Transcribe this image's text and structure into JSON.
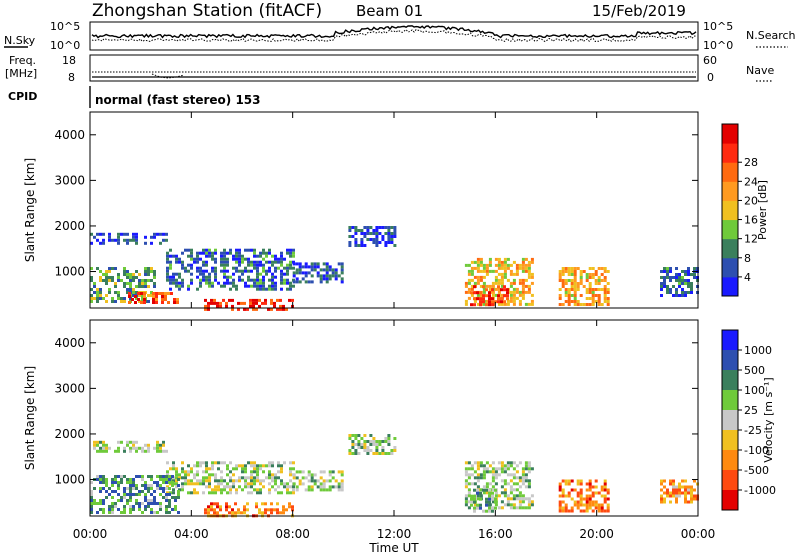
{
  "header": {
    "station": "Zhongshan Station (fitACF)",
    "beam": "Beam 01",
    "date": "15/Feb/2019"
  },
  "noise_panel": {
    "left_label": "N.Sky",
    "left_ticks": [
      "10^5",
      "10^0"
    ],
    "right_label": "N.Search",
    "right_ticks": [
      "10^5",
      "10^0"
    ]
  },
  "freq_panel": {
    "left_label_1": "Freq.",
    "left_label_2": "[MHz]",
    "left_ticks": [
      "18",
      "8"
    ],
    "right_label": "Nave",
    "right_ticks": [
      "60",
      "0"
    ]
  },
  "cpid": {
    "label": "CPID",
    "value": "normal (fast stereo) 153"
  },
  "colors": {
    "power_scale": [
      "#1a1aff",
      "#2d4fb0",
      "#3a7f5c",
      "#6fca3a",
      "#f0c020",
      "#ff9a20",
      "#ff6a10",
      "#ff2a10",
      "#e30000"
    ],
    "velocity_scale": [
      "#1a1aff",
      "#2d4fb0",
      "#3a7f5c",
      "#6fca3a",
      "#c8c8c8",
      "#f0c020",
      "#ff8a10",
      "#ff4a10",
      "#e30000"
    ]
  },
  "chart_data": [
    {
      "type": "heatmap",
      "name": "power",
      "ylabel": "Slant Range [km]",
      "y_ticks": [
        "1000",
        "2000",
        "3000",
        "4000"
      ],
      "ylim": [
        200,
        4500
      ],
      "x_ticks": [
        "00:00",
        "04:00",
        "08:00",
        "12:00",
        "16:00",
        "20:00",
        "00:00"
      ],
      "xlim_hours": [
        0,
        24
      ],
      "colorbar_label": "Power [dB]",
      "colorbar_ticks": [
        "4",
        "8",
        "12",
        "16",
        "20",
        "24",
        "28"
      ],
      "regions": [
        {
          "t0": 0.0,
          "t1": 3.0,
          "r0": 1650,
          "r1": 1850,
          "level": 0.15
        },
        {
          "t0": 3.0,
          "t1": 8.0,
          "r0": 600,
          "r1": 1500,
          "level": 0.2
        },
        {
          "t0": 0.0,
          "t1": 2.5,
          "r0": 350,
          "r1": 1100,
          "level": 0.35
        },
        {
          "t0": 1.5,
          "t1": 3.5,
          "r0": 300,
          "r1": 550,
          "level": 0.8
        },
        {
          "t0": 4.5,
          "t1": 8.0,
          "r0": 200,
          "r1": 400,
          "level": 0.85
        },
        {
          "t0": 8.0,
          "t1": 10.0,
          "r0": 800,
          "r1": 1200,
          "level": 0.15
        },
        {
          "t0": 10.2,
          "t1": 12.0,
          "r0": 1600,
          "r1": 2000,
          "level": 0.15
        },
        {
          "t0": 14.8,
          "t1": 17.5,
          "r0": 300,
          "r1": 1300,
          "level": 0.55
        },
        {
          "t0": 15.0,
          "t1": 16.5,
          "r0": 300,
          "r1": 700,
          "level": 0.85
        },
        {
          "t0": 18.5,
          "t1": 20.5,
          "r0": 300,
          "r1": 1100,
          "level": 0.6
        },
        {
          "t0": 22.5,
          "t1": 24.0,
          "r0": 500,
          "r1": 1100,
          "level": 0.2
        }
      ]
    },
    {
      "type": "heatmap",
      "name": "velocity",
      "ylabel": "Slant Range [km]",
      "y_ticks": [
        "1000",
        "2000",
        "3000",
        "4000"
      ],
      "ylim": [
        200,
        4500
      ],
      "x_ticks": [
        "00:00",
        "04:00",
        "08:00",
        "12:00",
        "16:00",
        "20:00",
        "00:00"
      ],
      "xlim_hours": [
        0,
        24
      ],
      "xlabel": "Time UT",
      "colorbar_label": "Velocity [m s⁻¹]",
      "colorbar_ticks": [
        "1000",
        "500",
        "100",
        "25",
        "-25",
        "-100",
        "-500",
        "-1000"
      ],
      "regions": [
        {
          "t0": 0.0,
          "t1": 3.0,
          "r0": 1650,
          "r1": 1850,
          "level": 0.45
        },
        {
          "t0": 3.0,
          "t1": 8.0,
          "r0": 700,
          "r1": 1400,
          "level": 0.45
        },
        {
          "t0": 0.0,
          "t1": 3.5,
          "r0": 300,
          "r1": 1100,
          "level": 0.3
        },
        {
          "t0": 4.5,
          "t1": 8.0,
          "r0": 200,
          "r1": 500,
          "level": 0.75
        },
        {
          "t0": 8.0,
          "t1": 10.0,
          "r0": 800,
          "r1": 1200,
          "level": 0.45
        },
        {
          "t0": 10.2,
          "t1": 12.0,
          "r0": 1600,
          "r1": 2000,
          "level": 0.45
        },
        {
          "t0": 14.8,
          "t1": 17.5,
          "r0": 400,
          "r1": 1400,
          "level": 0.45
        },
        {
          "t0": 15.0,
          "t1": 16.0,
          "r0": 300,
          "r1": 800,
          "level": 0.35
        },
        {
          "t0": 18.5,
          "t1": 20.5,
          "r0": 300,
          "r1": 1000,
          "level": 0.75
        },
        {
          "t0": 22.5,
          "t1": 24.0,
          "r0": 500,
          "r1": 1000,
          "level": 0.7
        }
      ]
    }
  ],
  "xlabel": "Time UT"
}
